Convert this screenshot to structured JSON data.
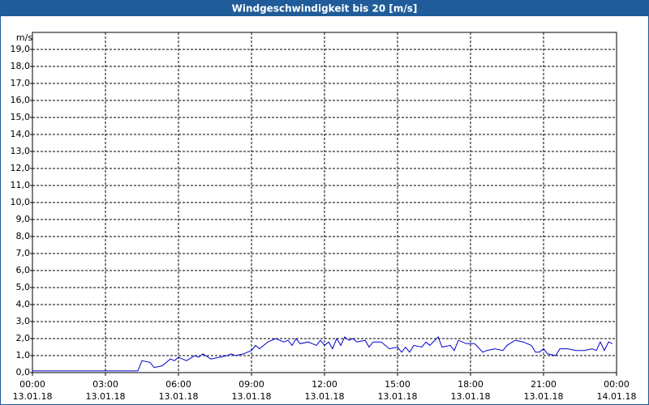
{
  "chart_data": {
    "type": "line",
    "title": "Windgeschwindigkeit bis 20 [m/s]",
    "ylabel": "m/s",
    "xlim": [
      0,
      24
    ],
    "xticks": [
      {
        "value": 0,
        "label": "00:00"
      },
      {
        "value": 3,
        "label": "03:00"
      },
      {
        "value": 6,
        "label": "06:00"
      },
      {
        "value": 9,
        "label": "09:00"
      },
      {
        "value": 12,
        "label": "12:00"
      },
      {
        "value": 15,
        "label": "15:00"
      },
      {
        "value": 18,
        "label": "18:00"
      },
      {
        "value": 21,
        "label": "21:00"
      },
      {
        "value": 24,
        "label": "00:00"
      }
    ],
    "xtick_dates": [
      "13.01.18",
      "13.01.18",
      "13.01.18",
      "13.01.18",
      "13.01.18",
      "13.01.18",
      "13.01.18",
      "13.01.18",
      "14.01.18"
    ],
    "ylim": [
      0,
      20
    ],
    "yticks": [
      {
        "value": 0,
        "label": "0,0"
      },
      {
        "value": 1,
        "label": "1,0"
      },
      {
        "value": 2,
        "label": "2,0"
      },
      {
        "value": 3,
        "label": "3,0"
      },
      {
        "value": 4,
        "label": "4,0"
      },
      {
        "value": 5,
        "label": "5,0"
      },
      {
        "value": 6,
        "label": "6,0"
      },
      {
        "value": 7,
        "label": "7,0"
      },
      {
        "value": 8,
        "label": "8,0"
      },
      {
        "value": 9,
        "label": "9,0"
      },
      {
        "value": 10,
        "label": "10,0"
      },
      {
        "value": 11,
        "label": "11,0"
      },
      {
        "value": 12,
        "label": "12,0"
      },
      {
        "value": 13,
        "label": "13,0"
      },
      {
        "value": 14,
        "label": "14,0"
      },
      {
        "value": 15,
        "label": "15,0"
      },
      {
        "value": 16,
        "label": "16,0"
      },
      {
        "value": 17,
        "label": "17,0"
      },
      {
        "value": 18,
        "label": "18,0"
      },
      {
        "value": 19,
        "label": "19,0"
      }
    ],
    "grid": true,
    "x": [
      0,
      4.33,
      4.5,
      4.83,
      5,
      5.33,
      5.67,
      5.83,
      6,
      6.33,
      6.67,
      6.83,
      7,
      7.33,
      7.67,
      8,
      8.17,
      8.33,
      8.67,
      9,
      9.17,
      9.33,
      9.67,
      10,
      10.33,
      10.5,
      10.67,
      10.83,
      11,
      11.33,
      11.67,
      11.83,
      12,
      12.17,
      12.33,
      12.5,
      12.67,
      12.83,
      13,
      13.17,
      13.33,
      13.67,
      13.83,
      14,
      14.33,
      14.67,
      15,
      15.17,
      15.33,
      15.5,
      15.67,
      16,
      16.17,
      16.33,
      16.67,
      16.83,
      17.17,
      17.33,
      17.5,
      17.83,
      18.17,
      18.5,
      18.67,
      19,
      19.33,
      19.5,
      19.83,
      20.17,
      20.5,
      20.67,
      20.83,
      21,
      21.17,
      21.5,
      21.67,
      22,
      22.33,
      22.67,
      23,
      23.17,
      23.33,
      23.5,
      23.67,
      23.83
    ],
    "series": [
      {
        "color": "#0000cc",
        "values": [
          0.1,
          0.1,
          0.7,
          0.6,
          0.3,
          0.4,
          0.8,
          0.7,
          0.9,
          0.7,
          1.0,
          0.9,
          1.1,
          0.8,
          0.9,
          1.0,
          1.1,
          1.0,
          1.1,
          1.3,
          1.6,
          1.4,
          1.8,
          2.0,
          1.8,
          1.9,
          1.6,
          2.0,
          1.7,
          1.8,
          1.6,
          1.9,
          1.6,
          1.8,
          1.4,
          2.0,
          1.6,
          2.1,
          1.9,
          2.0,
          1.8,
          1.9,
          1.5,
          1.8,
          1.8,
          1.4,
          1.5,
          1.2,
          1.5,
          1.2,
          1.6,
          1.5,
          1.8,
          1.6,
          2.1,
          1.5,
          1.6,
          1.3,
          1.9,
          1.7,
          1.7,
          1.2,
          1.3,
          1.4,
          1.3,
          1.6,
          1.9,
          1.8,
          1.6,
          1.2,
          1.2,
          1.4,
          1.1,
          1.0,
          1.4,
          1.4,
          1.3,
          1.3,
          1.4,
          1.3,
          1.8,
          1.3,
          1.8,
          1.7
        ]
      }
    ]
  }
}
